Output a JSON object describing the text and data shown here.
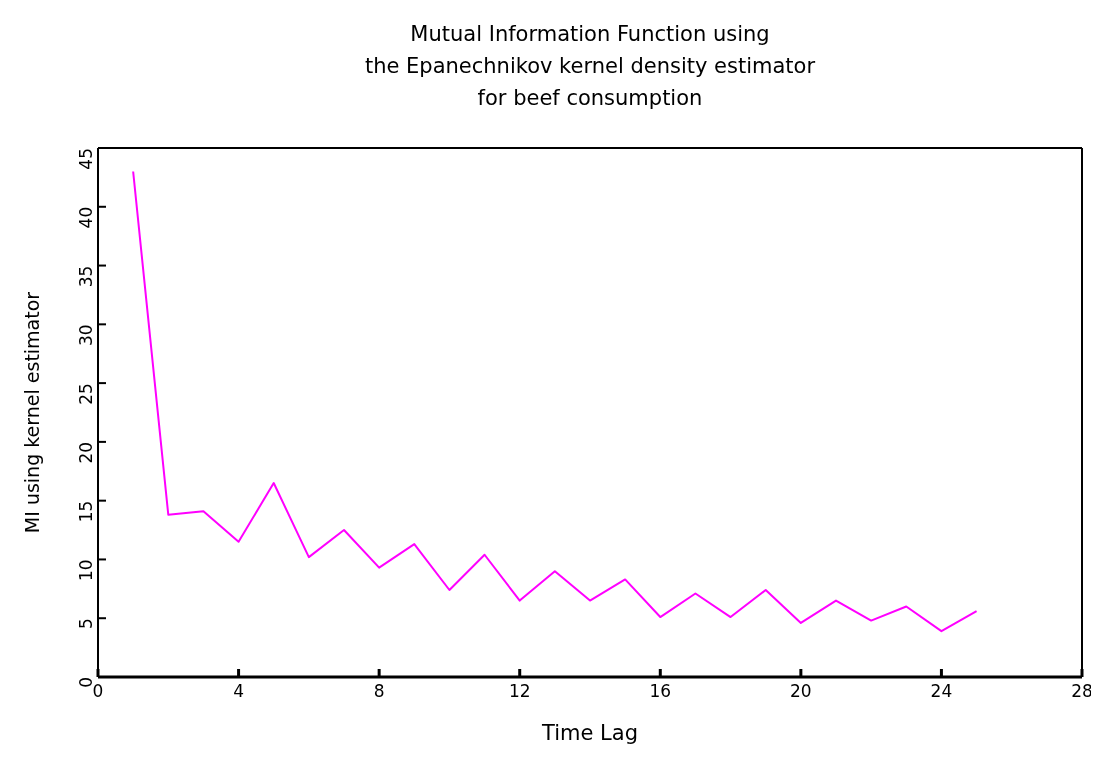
{
  "chart_data": {
    "type": "line",
    "title": "Mutual Information Function using\nthe Epanechnikov kernel density estimator\nfor beef consumption",
    "xlabel": "Time Lag",
    "ylabel": "MI using kernel estimator",
    "x": [
      1,
      2,
      3,
      4,
      5,
      6,
      7,
      8,
      9,
      10,
      11,
      12,
      13,
      14,
      15,
      16,
      17,
      18,
      19,
      20,
      21,
      22,
      23,
      24,
      25
    ],
    "series": [
      {
        "color": "#ff00ff",
        "values": [
          43,
          13.8,
          14.1,
          11.5,
          16.5,
          10.2,
          12.5,
          9.3,
          11.3,
          7.4,
          10.4,
          6.5,
          9,
          6.5,
          8.3,
          5.1,
          7.1,
          5.1,
          7.4,
          4.6,
          6.5,
          4.8,
          6,
          3.9,
          5.6
        ]
      }
    ],
    "xlim": [
      0,
      28
    ],
    "xticks": [
      0,
      4,
      8,
      12,
      16,
      20,
      24,
      28
    ],
    "ylim": [
      0,
      45
    ],
    "yticks": [
      0,
      5,
      10,
      15,
      20,
      25,
      30,
      35,
      40,
      45
    ],
    "grid": false,
    "legend": false,
    "marker": "none",
    "line_style": "solid"
  }
}
